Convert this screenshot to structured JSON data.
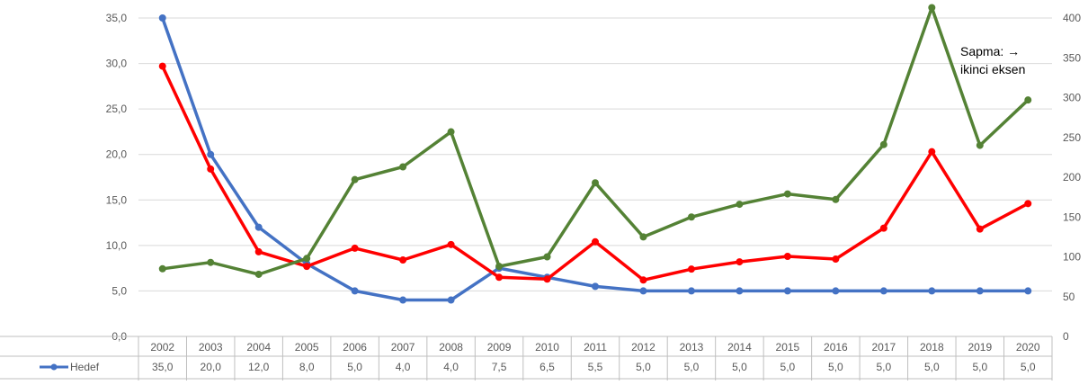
{
  "chart_data": {
    "type": "line",
    "title": "",
    "annotation": [
      "Sapma: →",
      "ikinci eksen"
    ],
    "categories": [
      "2002",
      "2003",
      "2004",
      "2005",
      "2006",
      "2007",
      "2008",
      "2009",
      "2010",
      "2011",
      "2012",
      "2013",
      "2014",
      "2015",
      "2016",
      "2017",
      "2018",
      "2019",
      "2020"
    ],
    "y_left": {
      "ylim": [
        0,
        35
      ],
      "ticks": [
        "0,0",
        "5,0",
        "10,0",
        "15,0",
        "20,0",
        "25,0",
        "30,0",
        "35,0"
      ]
    },
    "y_right": {
      "ylim": [
        0,
        400
      ],
      "ticks": [
        "0",
        "50",
        "100",
        "150",
        "200",
        "250",
        "300",
        "350",
        "400"
      ]
    },
    "grid": "horizontal",
    "series": [
      {
        "name": "Hedef",
        "axis": "left",
        "color": "#4472C4",
        "values": [
          35.0,
          20.0,
          12.0,
          8.0,
          5.0,
          4.0,
          4.0,
          7.5,
          6.5,
          5.5,
          5.0,
          5.0,
          5.0,
          5.0,
          5.0,
          5.0,
          5.0,
          5.0,
          5.0
        ],
        "table_values": [
          "35,0",
          "20,0",
          "12,0",
          "8,0",
          "5,0",
          "4,0",
          "4,0",
          "7,5",
          "6,5",
          "5,5",
          "5,0",
          "5,0",
          "5,0",
          "5,0",
          "5,0",
          "5,0",
          "5,0",
          "5,0",
          "5,0"
        ]
      },
      {
        "axis": "left",
        "color": "#FF0000",
        "values": [
          29.7,
          18.4,
          9.3,
          7.7,
          9.7,
          8.4,
          10.1,
          6.5,
          6.3,
          10.4,
          6.2,
          7.4,
          8.2,
          8.8,
          8.5,
          11.9,
          20.3,
          11.8,
          14.6
        ]
      },
      {
        "axis": "right",
        "color": "#548235",
        "values": [
          85,
          93,
          78,
          98,
          197,
          213,
          257,
          88,
          100,
          193,
          125,
          150,
          166,
          179,
          172,
          241,
          413,
          240,
          297
        ]
      }
    ]
  }
}
